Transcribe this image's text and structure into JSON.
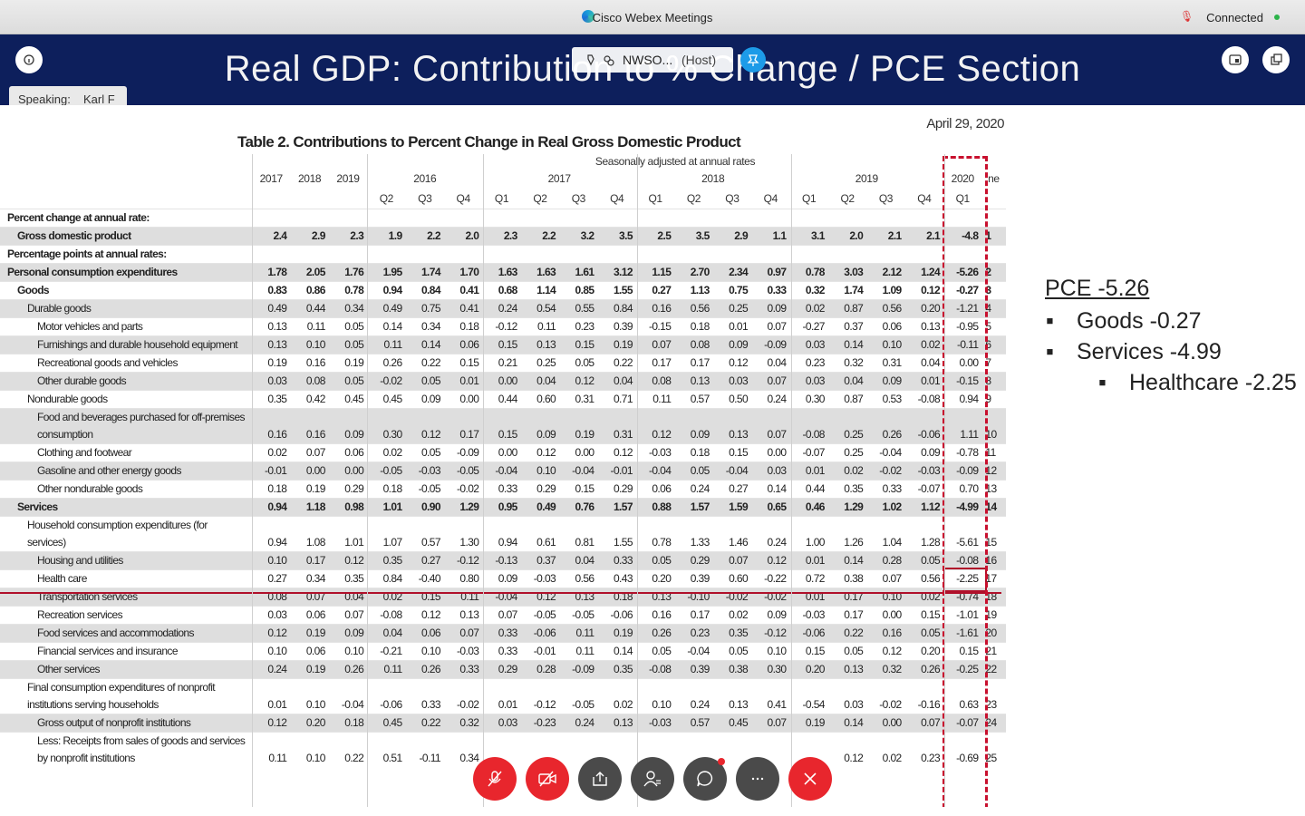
{
  "window": {
    "title": "Cisco Webex Meetings",
    "status": "Connected"
  },
  "presenter": {
    "name": "NWSO...",
    "role": "(Host)",
    "speaking_label": "Speaking:",
    "speaker": "Karl F"
  },
  "slide": {
    "title": "Real GDP:  Contribution to % Change / PCE Section",
    "date": "April 29, 2020",
    "table_title": "Table 2. Contributions to Percent Change in Real Gross Domestic Product",
    "subtitle": "Seasonally adjusted at annual rates",
    "annual_years": [
      "2017",
      "2018",
      "2019"
    ],
    "quarter_groups": [
      {
        "year": "2016",
        "quarters": [
          "Q2",
          "Q3",
          "Q4"
        ]
      },
      {
        "year": "2017",
        "quarters": [
          "Q1",
          "Q2",
          "Q3",
          "Q4"
        ]
      },
      {
        "year": "2018",
        "quarters": [
          "Q1",
          "Q2",
          "Q3",
          "Q4"
        ]
      },
      {
        "year": "2019",
        "quarters": [
          "Q1",
          "Q2",
          "Q3",
          "Q4"
        ]
      },
      {
        "year": "2020",
        "quarters": [
          "Q1"
        ]
      }
    ],
    "line_header": "ne",
    "rows": [
      {
        "label": "Percent change at annual rate:",
        "indent": 0
      },
      {
        "label": "Gross domestic product",
        "indent": 1,
        "values": [
          "2.4",
          "2.9",
          "2.3",
          "1.9",
          "2.2",
          "2.0",
          "2.3",
          "2.2",
          "3.2",
          "3.5",
          "2.5",
          "3.5",
          "2.9",
          "1.1",
          "3.1",
          "2.0",
          "2.1",
          "2.1",
          "-4.8"
        ],
        "line": "1"
      },
      {
        "label": "Percentage points at annual rates:",
        "indent": 0
      },
      {
        "label": "Personal consumption expenditures",
        "indent": 0,
        "values": [
          "1.78",
          "2.05",
          "1.76",
          "1.95",
          "1.74",
          "1.70",
          "1.63",
          "1.63",
          "1.61",
          "3.12",
          "1.15",
          "2.70",
          "2.34",
          "0.97",
          "0.78",
          "3.03",
          "2.12",
          "1.24",
          "-5.26"
        ],
        "line": "2"
      },
      {
        "label": "Goods",
        "indent": 1,
        "values": [
          "0.83",
          "0.86",
          "0.78",
          "0.94",
          "0.84",
          "0.41",
          "0.68",
          "1.14",
          "0.85",
          "1.55",
          "0.27",
          "1.13",
          "0.75",
          "0.33",
          "0.32",
          "1.74",
          "1.09",
          "0.12",
          "-0.27"
        ],
        "line": "3"
      },
      {
        "label": "Durable goods",
        "indent": 2,
        "values": [
          "0.49",
          "0.44",
          "0.34",
          "0.49",
          "0.75",
          "0.41",
          "0.24",
          "0.54",
          "0.55",
          "0.84",
          "0.16",
          "0.56",
          "0.25",
          "0.09",
          "0.02",
          "0.87",
          "0.56",
          "0.20",
          "-1.21"
        ],
        "line": "4"
      },
      {
        "label": "Motor vehicles and parts",
        "indent": 3,
        "values": [
          "0.13",
          "0.11",
          "0.05",
          "0.14",
          "0.34",
          "0.18",
          "-0.12",
          "0.11",
          "0.23",
          "0.39",
          "-0.15",
          "0.18",
          "0.01",
          "0.07",
          "-0.27",
          "0.37",
          "0.06",
          "0.13",
          "-0.95"
        ],
        "line": "5"
      },
      {
        "label": "Furnishings and durable household equipment",
        "indent": 3,
        "values": [
          "0.13",
          "0.10",
          "0.05",
          "0.11",
          "0.14",
          "0.06",
          "0.15",
          "0.13",
          "0.15",
          "0.19",
          "0.07",
          "0.08",
          "0.09",
          "-0.09",
          "0.03",
          "0.14",
          "0.10",
          "0.02",
          "-0.11"
        ],
        "line": "6"
      },
      {
        "label": "Recreational goods and vehicles",
        "indent": 3,
        "values": [
          "0.19",
          "0.16",
          "0.19",
          "0.26",
          "0.22",
          "0.15",
          "0.21",
          "0.25",
          "0.05",
          "0.22",
          "0.17",
          "0.17",
          "0.12",
          "0.04",
          "0.23",
          "0.32",
          "0.31",
          "0.04",
          "0.00"
        ],
        "line": "7"
      },
      {
        "label": "Other durable goods",
        "indent": 3,
        "values": [
          "0.03",
          "0.08",
          "0.05",
          "-0.02",
          "0.05",
          "0.01",
          "0.00",
          "0.04",
          "0.12",
          "0.04",
          "0.08",
          "0.13",
          "0.03",
          "0.07",
          "0.03",
          "0.04",
          "0.09",
          "0.01",
          "-0.15"
        ],
        "line": "8"
      },
      {
        "label": "Nondurable goods",
        "indent": 2,
        "values": [
          "0.35",
          "0.42",
          "0.45",
          "0.45",
          "0.09",
          "0.00",
          "0.44",
          "0.60",
          "0.31",
          "0.71",
          "0.11",
          "0.57",
          "0.50",
          "0.24",
          "0.30",
          "0.87",
          "0.53",
          "-0.08",
          "0.94"
        ],
        "line": "9"
      },
      {
        "label": "Food and beverages purchased for off-premises consumption",
        "indent": 3,
        "values": [
          "0.16",
          "0.16",
          "0.09",
          "0.30",
          "0.12",
          "0.17",
          "0.15",
          "0.09",
          "0.19",
          "0.31",
          "0.12",
          "0.09",
          "0.13",
          "0.07",
          "-0.08",
          "0.25",
          "0.26",
          "-0.06",
          "1.11"
        ],
        "line": "10"
      },
      {
        "label": "Clothing and footwear",
        "indent": 3,
        "values": [
          "0.02",
          "0.07",
          "0.06",
          "0.02",
          "0.05",
          "-0.09",
          "0.00",
          "0.12",
          "0.00",
          "0.12",
          "-0.03",
          "0.18",
          "0.15",
          "0.00",
          "-0.07",
          "0.25",
          "-0.04",
          "0.09",
          "-0.78"
        ],
        "line": "11"
      },
      {
        "label": "Gasoline and other energy goods",
        "indent": 3,
        "values": [
          "-0.01",
          "0.00",
          "0.00",
          "-0.05",
          "-0.03",
          "-0.05",
          "-0.04",
          "0.10",
          "-0.04",
          "-0.01",
          "-0.04",
          "0.05",
          "-0.04",
          "0.03",
          "0.01",
          "0.02",
          "-0.02",
          "-0.03",
          "-0.09"
        ],
        "line": "12"
      },
      {
        "label": "Other nondurable goods",
        "indent": 3,
        "values": [
          "0.18",
          "0.19",
          "0.29",
          "0.18",
          "-0.05",
          "-0.02",
          "0.33",
          "0.29",
          "0.15",
          "0.29",
          "0.06",
          "0.24",
          "0.27",
          "0.14",
          "0.44",
          "0.35",
          "0.33",
          "-0.07",
          "0.70"
        ],
        "line": "13"
      },
      {
        "label": "Services",
        "indent": 1,
        "values": [
          "0.94",
          "1.18",
          "0.98",
          "1.01",
          "0.90",
          "1.29",
          "0.95",
          "0.49",
          "0.76",
          "1.57",
          "0.88",
          "1.57",
          "1.59",
          "0.65",
          "0.46",
          "1.29",
          "1.02",
          "1.12",
          "-4.99"
        ],
        "line": "14"
      },
      {
        "label": "Household consumption expenditures (for services)",
        "indent": 2,
        "values": [
          "0.94",
          "1.08",
          "1.01",
          "1.07",
          "0.57",
          "1.30",
          "0.94",
          "0.61",
          "0.81",
          "1.55",
          "0.78",
          "1.33",
          "1.46",
          "0.24",
          "1.00",
          "1.26",
          "1.04",
          "1.28",
          "-5.61"
        ],
        "line": "15"
      },
      {
        "label": "Housing and utilities",
        "indent": 3,
        "values": [
          "0.10",
          "0.17",
          "0.12",
          "0.35",
          "0.27",
          "-0.12",
          "-0.13",
          "0.37",
          "0.04",
          "0.33",
          "0.05",
          "0.29",
          "0.07",
          "0.12",
          "0.01",
          "0.14",
          "0.28",
          "0.05",
          "-0.08"
        ],
        "line": "16"
      },
      {
        "label": "Health care",
        "indent": 3,
        "values": [
          "0.27",
          "0.34",
          "0.35",
          "0.84",
          "-0.40",
          "0.80",
          "0.09",
          "-0.03",
          "0.56",
          "0.43",
          "0.20",
          "0.39",
          "0.60",
          "-0.22",
          "0.72",
          "0.38",
          "0.07",
          "0.56",
          "-2.25"
        ],
        "line": "17"
      },
      {
        "label": "Transportation services",
        "indent": 3,
        "values": [
          "0.08",
          "0.07",
          "0.04",
          "0.02",
          "0.15",
          "0.11",
          "-0.04",
          "0.12",
          "0.13",
          "0.18",
          "0.13",
          "-0.10",
          "-0.02",
          "-0.02",
          "0.01",
          "0.17",
          "0.10",
          "0.02",
          "-0.74"
        ],
        "line": "18"
      },
      {
        "label": "Recreation services",
        "indent": 3,
        "values": [
          "0.03",
          "0.06",
          "0.07",
          "-0.08",
          "0.12",
          "0.13",
          "0.07",
          "-0.05",
          "-0.05",
          "-0.06",
          "0.16",
          "0.17",
          "0.02",
          "0.09",
          "-0.03",
          "0.17",
          "0.00",
          "0.15",
          "-1.01"
        ],
        "line": "19"
      },
      {
        "label": "Food services and accommodations",
        "indent": 3,
        "values": [
          "0.12",
          "0.19",
          "0.09",
          "0.04",
          "0.06",
          "0.07",
          "0.33",
          "-0.06",
          "0.11",
          "0.19",
          "0.26",
          "0.23",
          "0.35",
          "-0.12",
          "-0.06",
          "0.22",
          "0.16",
          "0.05",
          "-1.61"
        ],
        "line": "20"
      },
      {
        "label": "Financial services and insurance",
        "indent": 3,
        "values": [
          "0.10",
          "0.06",
          "0.10",
          "-0.21",
          "0.10",
          "-0.03",
          "0.33",
          "-0.01",
          "0.11",
          "0.14",
          "0.05",
          "-0.04",
          "0.05",
          "0.10",
          "0.15",
          "0.05",
          "0.12",
          "0.20",
          "0.15"
        ],
        "line": "21"
      },
      {
        "label": "Other services",
        "indent": 3,
        "values": [
          "0.24",
          "0.19",
          "0.26",
          "0.11",
          "0.26",
          "0.33",
          "0.29",
          "0.28",
          "-0.09",
          "0.35",
          "-0.08",
          "0.39",
          "0.38",
          "0.30",
          "0.20",
          "0.13",
          "0.32",
          "0.26",
          "-0.25"
        ],
        "line": "22"
      },
      {
        "label": "Final consumption expenditures of nonprofit institutions serving households",
        "indent": 2,
        "values": [
          "0.01",
          "0.10",
          "-0.04",
          "-0.06",
          "0.33",
          "-0.02",
          "0.01",
          "-0.12",
          "-0.05",
          "0.02",
          "0.10",
          "0.24",
          "0.13",
          "0.41",
          "-0.54",
          "0.03",
          "-0.02",
          "-0.16",
          "0.63"
        ],
        "line": "23"
      },
      {
        "label": "Gross output of nonprofit institutions",
        "indent": 3,
        "values": [
          "0.12",
          "0.20",
          "0.18",
          "0.45",
          "0.22",
          "0.32",
          "0.03",
          "-0.23",
          "0.24",
          "0.13",
          "-0.03",
          "0.57",
          "0.45",
          "0.07",
          "0.19",
          "0.14",
          "0.00",
          "0.07",
          "-0.07"
        ],
        "line": "24"
      },
      {
        "label": "Less: Receipts from sales of goods and services by nonprofit institutions",
        "indent": 3,
        "values": [
          "0.11",
          "0.10",
          "0.22",
          "0.51",
          "-0.11",
          "0.34",
          null,
          null,
          null,
          null,
          null,
          null,
          null,
          null,
          null,
          "0.12",
          "0.02",
          "0.23",
          "-0.69"
        ],
        "line": "25"
      }
    ]
  },
  "notes": {
    "heading": "PCE -5.26",
    "items": [
      "Goods  -0.27",
      "Services  -4.99"
    ],
    "subitems": [
      "Healthcare -2.25"
    ]
  }
}
